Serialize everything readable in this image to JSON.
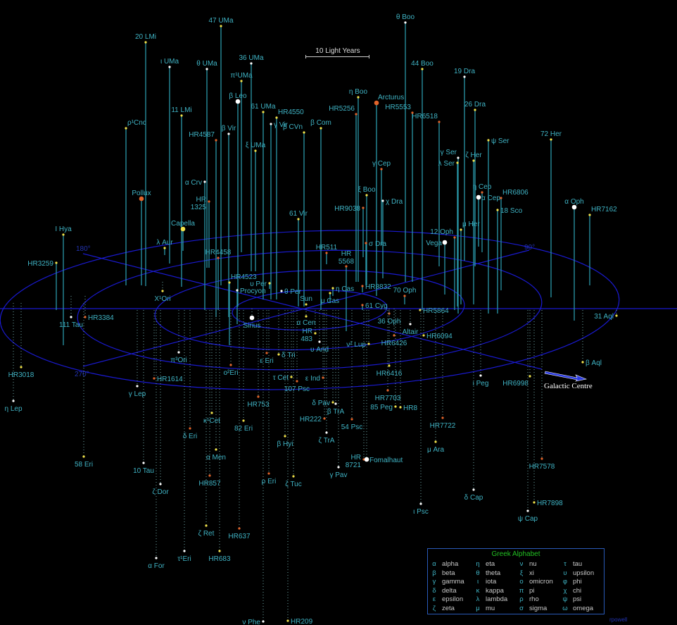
{
  "scale_label": "10 Light Years",
  "galactic_centre_label": "Galactic Centre",
  "credit": "rpowell",
  "degree_labels": {
    "deg180": "180°",
    "deg90": "90°",
    "deg270": "270°"
  },
  "colors": {
    "background": "#000000",
    "grid": "#1a1ad0",
    "label": "#3fb3c4",
    "stem": "#2a98a8",
    "yellow_star": "#f2e24a",
    "white_star": "#ffffff",
    "orange_star": "#e2642a",
    "legend_title": "#22c022"
  },
  "legend": {
    "title": "Greek Alphabet",
    "entries": [
      [
        "α",
        "alpha"
      ],
      [
        "η",
        "eta"
      ],
      [
        "ν",
        "nu"
      ],
      [
        "τ",
        "tau"
      ],
      [
        "β",
        "beta"
      ],
      [
        "θ",
        "theta"
      ],
      [
        "ξ",
        "xi"
      ],
      [
        "υ",
        "upsilon"
      ],
      [
        "γ",
        "gamma"
      ],
      [
        "ι",
        "iota"
      ],
      [
        "ο",
        "omicron"
      ],
      [
        "φ",
        "phi"
      ],
      [
        "δ",
        "delta"
      ],
      [
        "κ",
        "kappa"
      ],
      [
        "π",
        "pi"
      ],
      [
        "χ",
        "chi"
      ],
      [
        "ε",
        "epsilon"
      ],
      [
        "λ",
        "lambda"
      ],
      [
        "ρ",
        "rho"
      ],
      [
        "ψ",
        "psi"
      ],
      [
        "ζ",
        "zeta"
      ],
      [
        "μ",
        "mu"
      ],
      [
        "σ",
        "sigma"
      ],
      [
        "ω",
        "omega"
      ]
    ]
  },
  "stars": [
    {
      "name": "20 LMi",
      "color": "yellow",
      "side": "above"
    },
    {
      "name": "47 UMa",
      "color": "yellow",
      "side": "above"
    },
    {
      "name": "ι UMa",
      "color": "white",
      "side": "above"
    },
    {
      "name": "θ UMa",
      "color": "white",
      "side": "above"
    },
    {
      "name": "36 UMa",
      "color": "white",
      "side": "above"
    },
    {
      "name": "π¹UMa",
      "color": "yellow",
      "side": "above"
    },
    {
      "name": "β Leo",
      "color": "white-bright",
      "side": "above"
    },
    {
      "name": "61 UMa",
      "color": "yellow",
      "side": "above"
    },
    {
      "name": "HR4550",
      "color": "yellow",
      "side": "above"
    },
    {
      "name": "11 LMi",
      "color": "yellow",
      "side": "above"
    },
    {
      "name": "ρ¹Cnc",
      "color": "yellow",
      "side": "above"
    },
    {
      "name": "HR4587",
      "color": "orange",
      "side": "above"
    },
    {
      "name": "β Vir",
      "color": "white",
      "side": "above"
    },
    {
      "name": "γ Vir",
      "color": "white",
      "side": "above"
    },
    {
      "name": "ξ UMa",
      "color": "yellow",
      "side": "above"
    },
    {
      "name": "β CVn",
      "color": "yellow",
      "side": "above"
    },
    {
      "name": "β Com",
      "color": "yellow",
      "side": "above"
    },
    {
      "name": "HR5256",
      "color": "orange",
      "side": "above"
    },
    {
      "name": "η Boo",
      "color": "yellow",
      "side": "above"
    },
    {
      "name": "Arcturus",
      "color": "orange-bright",
      "side": "above"
    },
    {
      "name": "θ Boo",
      "color": "white",
      "side": "above"
    },
    {
      "name": "44 Boo",
      "color": "yellow",
      "side": "above"
    },
    {
      "name": "HR5553",
      "color": "orange",
      "side": "above"
    },
    {
      "name": "19 Dra",
      "color": "white",
      "side": "above"
    },
    {
      "name": "26 Dra",
      "color": "yellow",
      "side": "above"
    },
    {
      "name": "HR6518",
      "color": "orange",
      "side": "above"
    },
    {
      "name": "ψ Ser",
      "color": "yellow",
      "side": "above"
    },
    {
      "name": "72 Her",
      "color": "yellow",
      "side": "above"
    },
    {
      "name": "γ Ser",
      "color": "white",
      "side": "above"
    },
    {
      "name": "ζ Her",
      "color": "yellow",
      "side": "above"
    },
    {
      "name": "λ Ser",
      "color": "yellow",
      "side": "above"
    },
    {
      "name": "γ Cep",
      "color": "orange",
      "side": "above"
    },
    {
      "name": "ξ Boo",
      "color": "yellow",
      "side": "above"
    },
    {
      "name": "χ Dra",
      "color": "white",
      "side": "above"
    },
    {
      "name": "HR9038",
      "color": "orange",
      "side": "above"
    },
    {
      "name": "η Cep",
      "color": "orange",
      "side": "above"
    },
    {
      "name": "α Cep",
      "color": "white-bright",
      "side": "above"
    },
    {
      "name": "HR6806",
      "color": "orange",
      "side": "above"
    },
    {
      "name": "18 Sco",
      "color": "yellow",
      "side": "above"
    },
    {
      "name": "α Oph",
      "color": "white-bright",
      "side": "above"
    },
    {
      "name": "HR7162",
      "color": "yellow",
      "side": "above"
    },
    {
      "name": "μ Her",
      "color": "yellow",
      "side": "above"
    },
    {
      "name": "12 Oph",
      "color": "orange",
      "side": "above"
    },
    {
      "name": "Vega",
      "color": "white-bright",
      "side": "above"
    },
    {
      "name": "σ Dra",
      "color": "orange",
      "side": "above"
    },
    {
      "name": "α Crv",
      "color": "white",
      "side": "above"
    },
    {
      "name": "HR 1325",
      "color": "orange",
      "side": "above"
    },
    {
      "name": "Pollux",
      "color": "orange-bright",
      "side": "above"
    },
    {
      "name": "Capella",
      "color": "yellow-bright",
      "side": "above"
    },
    {
      "name": "λ Aur",
      "color": "yellow",
      "side": "above"
    },
    {
      "name": "I Hya",
      "color": "yellow",
      "side": "above"
    },
    {
      "name": "HR3259",
      "color": "yellow",
      "side": "above"
    },
    {
      "name": "61 Vir",
      "color": "yellow",
      "side": "above"
    },
    {
      "name": "HR4458",
      "color": "orange",
      "side": "above"
    },
    {
      "name": "HR4523",
      "color": "yellow",
      "side": "above"
    },
    {
      "name": "Procyon",
      "color": "white",
      "side": "above"
    },
    {
      "name": "υ Per",
      "color": "yellow",
      "side": "above"
    },
    {
      "name": "θ Per",
      "color": "white",
      "side": "above"
    },
    {
      "name": "HR511",
      "color": "orange",
      "side": "above"
    },
    {
      "name": "HR 5568",
      "color": "orange",
      "side": "above"
    },
    {
      "name": "η Cas",
      "color": "yellow",
      "side": "above"
    },
    {
      "name": "μ Cas",
      "color": "yellow",
      "side": "above"
    },
    {
      "name": "HR8832",
      "color": "orange",
      "side": "above"
    },
    {
      "name": "61 Cyg",
      "color": "orange",
      "side": "above"
    },
    {
      "name": "70 Oph",
      "color": "orange",
      "side": "above"
    },
    {
      "name": "Sun",
      "color": "yellow",
      "side": "plane"
    },
    {
      "name": "Sirius",
      "color": "white-bright",
      "side": "below"
    },
    {
      "name": "α Cen",
      "color": "yellow",
      "side": "below"
    },
    {
      "name": "HR 483",
      "color": "yellow",
      "side": "below"
    },
    {
      "name": "υ And",
      "color": "white",
      "side": "below"
    },
    {
      "name": "36 Oph",
      "color": "orange",
      "side": "below"
    },
    {
      "name": "Altair",
      "color": "white",
      "side": "below"
    },
    {
      "name": "HR5864",
      "color": "yellow",
      "side": "below"
    },
    {
      "name": "HR6094",
      "color": "yellow",
      "side": "below"
    },
    {
      "name": "HR6426",
      "color": "orange",
      "side": "below"
    },
    {
      "name": "ν² Lup",
      "color": "yellow",
      "side": "below"
    },
    {
      "name": "111 Tau",
      "color": "white",
      "side": "below"
    },
    {
      "name": "HR3384",
      "color": "orange",
      "side": "below"
    },
    {
      "name": "X¹Ori",
      "color": "yellow",
      "side": "below"
    },
    {
      "name": "HR3018",
      "color": "yellow",
      "side": "below"
    },
    {
      "name": "η Lep",
      "color": "white",
      "side": "below"
    },
    {
      "name": "π³Ori",
      "color": "white",
      "side": "below"
    },
    {
      "name": "HR1614",
      "color": "orange",
      "side": "below"
    },
    {
      "name": "γ Lep",
      "color": "white",
      "side": "below"
    },
    {
      "name": "ο²Eri",
      "color": "orange",
      "side": "below"
    },
    {
      "name": "ε Eri",
      "color": "orange",
      "side": "below"
    },
    {
      "name": "δ Tri",
      "color": "yellow",
      "side": "below"
    },
    {
      "name": "τ Cet",
      "color": "yellow",
      "side": "below"
    },
    {
      "name": "107 Psc",
      "color": "orange",
      "side": "below"
    },
    {
      "name": "ε Ind",
      "color": "orange",
      "side": "below"
    },
    {
      "name": "HR753",
      "color": "orange",
      "side": "below"
    },
    {
      "name": "κ¹Cet",
      "color": "yellow",
      "side": "below"
    },
    {
      "name": "82 Eri",
      "color": "yellow",
      "side": "below"
    },
    {
      "name": "δ Eri",
      "color": "orange",
      "side": "below"
    },
    {
      "name": "α Men",
      "color": "yellow",
      "side": "below"
    },
    {
      "name": "HR857",
      "color": "orange",
      "side": "below"
    },
    {
      "name": "β Hyi",
      "color": "yellow",
      "side": "below"
    },
    {
      "name": "ζ Tuc",
      "color": "yellow",
      "side": "below"
    },
    {
      "name": "ρ Eri",
      "color": "orange",
      "side": "below"
    },
    {
      "name": "58 Eri",
      "color": "yellow",
      "side": "below"
    },
    {
      "name": "10 Tau",
      "color": "white",
      "side": "below"
    },
    {
      "name": "ζ Dor",
      "color": "white",
      "side": "below"
    },
    {
      "name": "ζ Ret",
      "color": "yellow",
      "side": "below"
    },
    {
      "name": "HR637",
      "color": "orange",
      "side": "below"
    },
    {
      "name": "HR683",
      "color": "yellow",
      "side": "below"
    },
    {
      "name": "τ¹Eri",
      "color": "white",
      "side": "below"
    },
    {
      "name": "α For",
      "color": "white",
      "side": "below"
    },
    {
      "name": "ν Phe",
      "color": "white",
      "side": "below"
    },
    {
      "name": "HR209",
      "color": "yellow",
      "side": "below"
    },
    {
      "name": "δ Pav",
      "color": "yellow",
      "side": "below"
    },
    {
      "name": "β TrA",
      "color": "white",
      "side": "below"
    },
    {
      "name": "HR222",
      "color": "orange",
      "side": "below"
    },
    {
      "name": "ζ TrA",
      "color": "white",
      "side": "below"
    },
    {
      "name": "54 Psc",
      "color": "orange",
      "side": "below"
    },
    {
      "name": "γ Pav",
      "color": "white",
      "side": "below"
    },
    {
      "name": "HR 8721",
      "color": "orange",
      "side": "below"
    },
    {
      "name": "Fomalhaut",
      "color": "white-bright",
      "side": "below"
    },
    {
      "name": "HR6416",
      "color": "yellow",
      "side": "below"
    },
    {
      "name": "HR7703",
      "color": "orange",
      "side": "below"
    },
    {
      "name": "85 Peg",
      "color": "yellow",
      "side": "below"
    },
    {
      "name": "HR8",
      "color": "yellow",
      "side": "below"
    },
    {
      "name": "HR7722",
      "color": "orange",
      "side": "below"
    },
    {
      "name": "μ Ara",
      "color": "yellow",
      "side": "below"
    },
    {
      "name": "ι Psc",
      "color": "white",
      "side": "below"
    },
    {
      "name": "ι Peg",
      "color": "white",
      "side": "below"
    },
    {
      "name": "δ Cap",
      "color": "white",
      "side": "below"
    },
    {
      "name": "HR6998",
      "color": "yellow",
      "side": "below"
    },
    {
      "name": "ψ Cap",
      "color": "white",
      "side": "below"
    },
    {
      "name": "HR7898",
      "color": "yellow",
      "side": "below"
    },
    {
      "name": "HR7578",
      "color": "orange",
      "side": "below"
    },
    {
      "name": "β Aql",
      "color": "yellow",
      "side": "below"
    },
    {
      "name": "31 Aql",
      "color": "yellow",
      "side": "below"
    }
  ]
}
